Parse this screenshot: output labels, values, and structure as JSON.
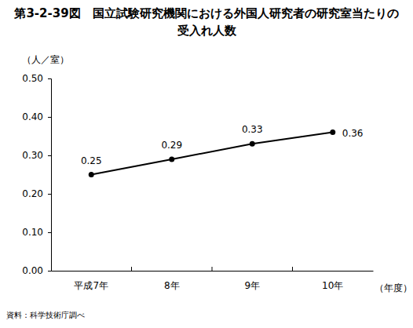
{
  "chart_data": {
    "type": "line",
    "title": "第3-2-39図　国立試験研究機関における外国人研究者の研究室当たりの受入れ人数",
    "y_label": "（人／室）",
    "x_label": "（年度）",
    "source": "資料：科学技術庁調べ",
    "categories": [
      "平成7年",
      "8年",
      "9年",
      "10年"
    ],
    "values": [
      0.25,
      0.29,
      0.33,
      0.36
    ],
    "color": "#000000",
    "marker": "circle",
    "ylim": [
      0,
      0.5
    ],
    "yticks": [
      {
        "value": 0,
        "label": "0.00"
      },
      {
        "value": 0.1,
        "label": "0.10"
      },
      {
        "value": 0.2,
        "label": "0.20"
      },
      {
        "value": 0.3,
        "label": "0.30"
      },
      {
        "value": 0.4,
        "label": "0.40"
      },
      {
        "value": 0.5,
        "label": "0.50"
      }
    ],
    "grid": false,
    "data_labels": true
  }
}
